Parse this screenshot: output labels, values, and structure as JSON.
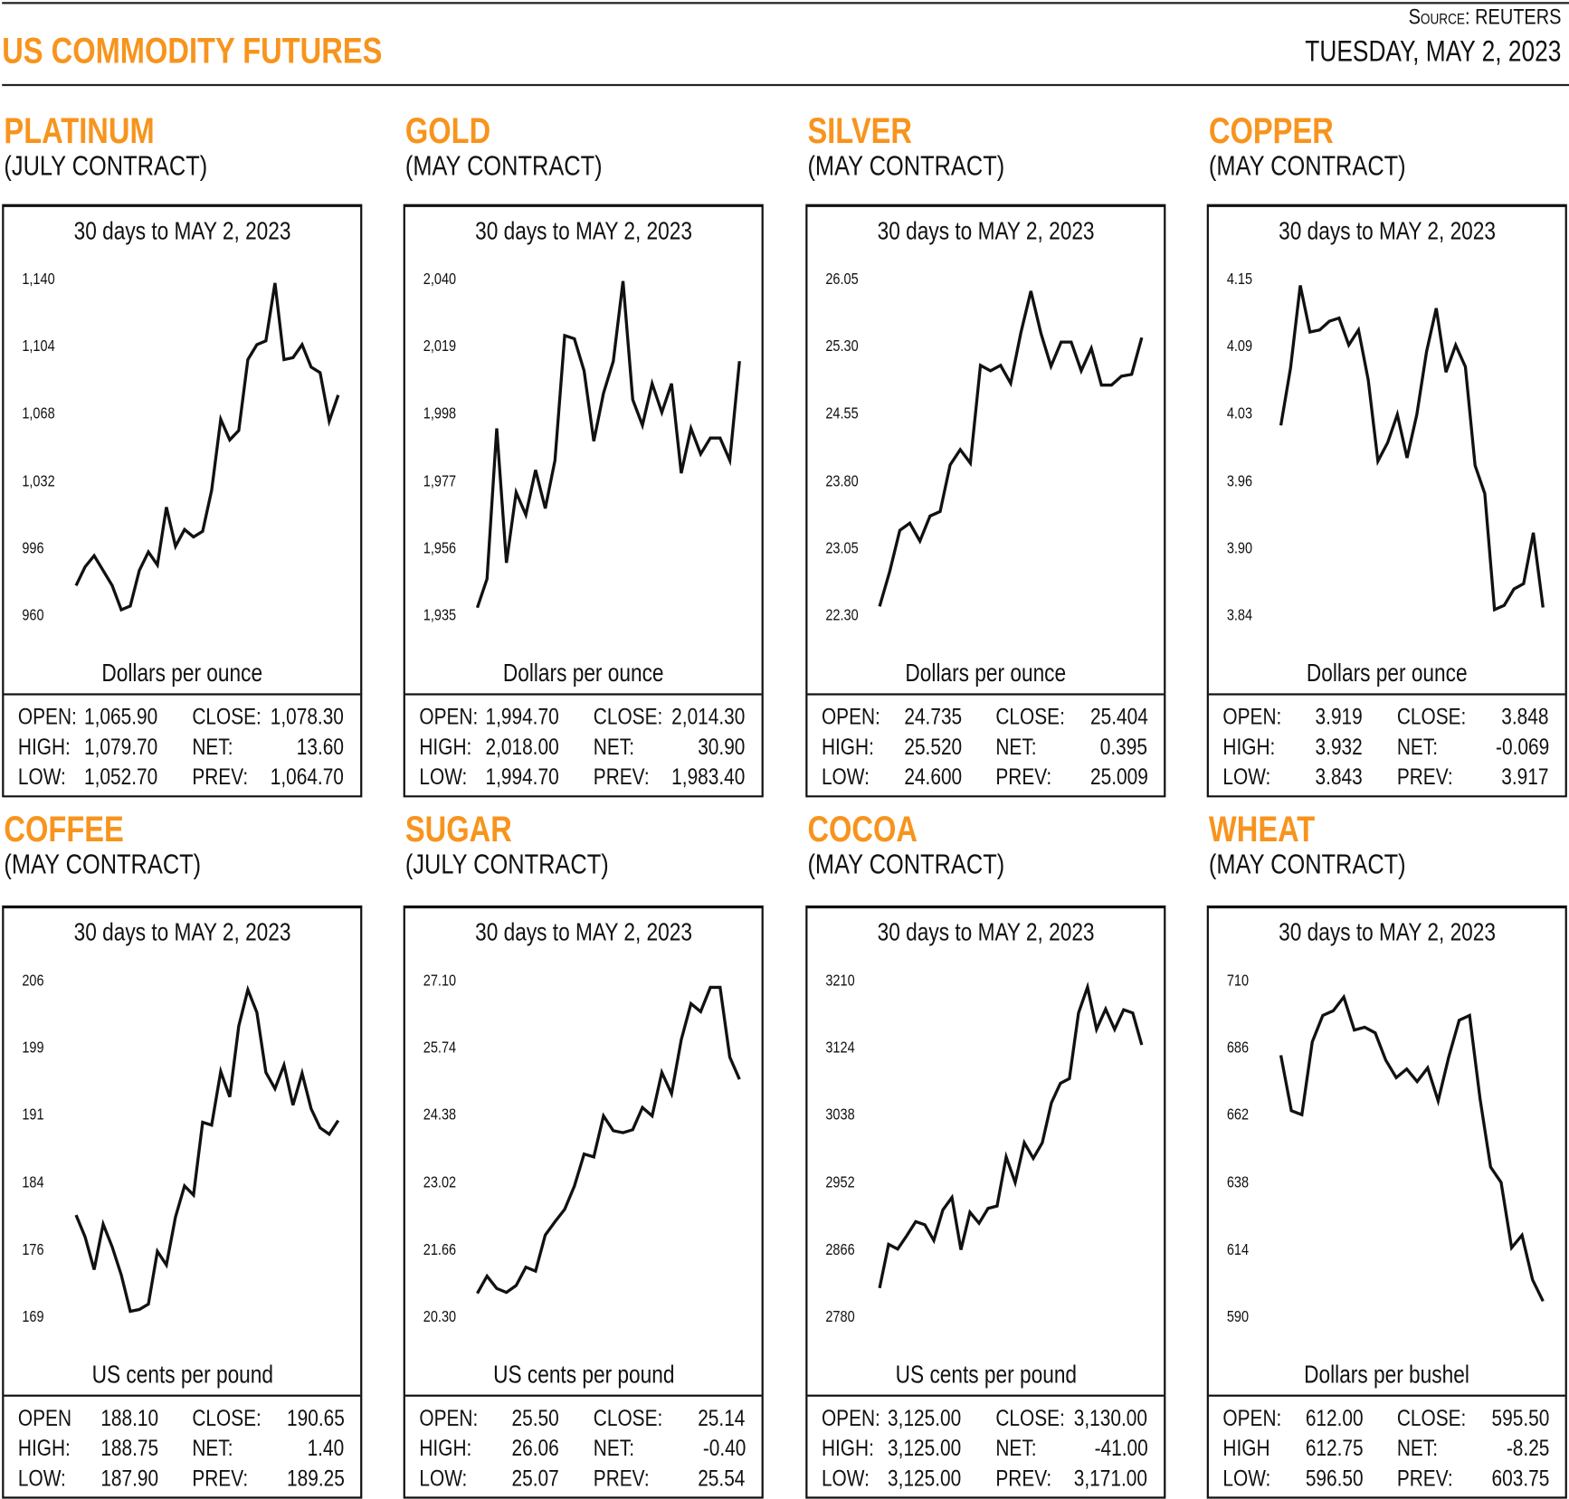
{
  "header": {
    "title": "US COMMODITY FUTURES",
    "source_label": "Source:",
    "source": "REUTERS",
    "date": "TUESDAY, MAY 2, 2023"
  },
  "colors": {
    "accent": "#F7941D",
    "line": "#111111"
  },
  "chart_data": [
    {
      "type": "line",
      "name": "PLATINUM",
      "contract": "(JULY CONTRACT)",
      "title": "30 days to MAY 2, 2023",
      "ylabel": "Dollars per ounce",
      "yticks": [
        "1,140",
        "1,104",
        "1,068",
        "1,032",
        "996",
        "960"
      ],
      "ylim": [
        960,
        1140
      ],
      "values": [
        977,
        987,
        993,
        985,
        977,
        964,
        966,
        985,
        995,
        988,
        1019,
        998,
        1007,
        1003,
        1006,
        1028,
        1066,
        1055,
        1060,
        1098,
        1106,
        1108,
        1139,
        1098,
        1099,
        1106,
        1094,
        1091,
        1065,
        1079
      ],
      "stats": [
        [
          "OPEN:",
          "1,065.90",
          "CLOSE:",
          "1,078.30"
        ],
        [
          "HIGH:",
          "1,079.70",
          "NET:",
          "13.60"
        ],
        [
          "LOW:",
          "1,052.70",
          "PREV:",
          "1,064.70"
        ]
      ]
    },
    {
      "type": "line",
      "name": "GOLD",
      "contract": "(MAY CONTRACT)",
      "title": "30 days to MAY 2, 2023",
      "ylabel": "Dollars per ounce",
      "yticks": [
        "2,040",
        "2,019",
        "1,998",
        "1,977",
        "1,956",
        "1,935"
      ],
      "ylim": [
        1935,
        2040
      ],
      "values": [
        1938,
        1947,
        1994,
        1952,
        1974,
        1967,
        1981,
        1969,
        1984,
        2023,
        2022,
        2012,
        1990,
        2005,
        2015,
        2040,
        2003,
        1995,
        2008,
        1999,
        2008,
        1980,
        1994,
        1986,
        1991,
        1991,
        1984,
        2015
      ],
      "stats": [
        [
          "OPEN:",
          "1,994.70",
          "CLOSE:",
          "2,014.30"
        ],
        [
          "HIGH:",
          "2,018.00",
          "NET:",
          "30.90"
        ],
        [
          "LOW:",
          "1,994.70",
          "PREV:",
          "1,983.40"
        ]
      ]
    },
    {
      "type": "line",
      "name": "SILVER",
      "contract": "(MAY CONTRACT)",
      "title": "30 days to MAY 2, 2023",
      "ylabel": "Dollars per ounce",
      "yticks": [
        "26.05",
        "25.30",
        "24.55",
        "23.80",
        "23.05",
        "22.30"
      ],
      "ylim": [
        22.3,
        26.05
      ],
      "values": [
        22.42,
        22.81,
        23.27,
        23.35,
        23.15,
        23.43,
        23.48,
        24.0,
        24.17,
        24.02,
        25.11,
        25.05,
        25.11,
        24.91,
        25.47,
        25.94,
        25.47,
        25.1,
        25.37,
        25.37,
        25.05,
        25.3,
        24.89,
        24.89,
        24.99,
        25.01,
        25.42
      ],
      "stats": [
        [
          "OPEN:",
          "24.735",
          "CLOSE:",
          "25.404"
        ],
        [
          "HIGH:",
          "25.520",
          "NET:",
          "0.395"
        ],
        [
          "LOW:",
          "24.600",
          "PREV:",
          "25.009"
        ]
      ]
    },
    {
      "type": "line",
      "name": "COPPER",
      "contract": "(MAY CONTRACT)",
      "title": "30 days to MAY 2, 2023",
      "ylabel": "Dollars per ounce",
      "yticks": [
        "4.15",
        "4.09",
        "4.03",
        "3.96",
        "3.90",
        "3.84"
      ],
      "ylim": [
        3.84,
        4.15
      ],
      "values": [
        4.017,
        4.07,
        4.146,
        4.103,
        4.105,
        4.113,
        4.116,
        4.091,
        4.105,
        4.059,
        3.984,
        4.001,
        4.027,
        3.987,
        4.027,
        4.085,
        4.125,
        4.066,
        4.091,
        4.071,
        3.98,
        3.954,
        3.847,
        3.851,
        3.866,
        3.871,
        3.918,
        3.849
      ],
      "stats": [
        [
          "OPEN:",
          "3.919",
          "CLOSE:",
          "3.848"
        ],
        [
          "HIGH:",
          "3.932",
          "NET:",
          "-0.069"
        ],
        [
          "LOW:",
          "3.843",
          "PREV:",
          "3.917"
        ]
      ]
    },
    {
      "type": "line",
      "name": "COFFEE",
      "contract": "(MAY CONTRACT)",
      "title": "30 days to MAY 2, 2023",
      "ylabel": "US cents per pound",
      "yticks": [
        "206",
        "199",
        "191",
        "184",
        "176",
        "169"
      ],
      "ylim": [
        169,
        206
      ],
      "values": [
        180.4,
        178.0,
        174.4,
        179.4,
        176.9,
        173.8,
        169.8,
        170.0,
        170.6,
        176.4,
        174.9,
        180.2,
        183.6,
        182.6,
        190.6,
        190.3,
        196.2,
        193.4,
        201.2,
        205.2,
        202.7,
        196.1,
        194.3,
        196.9,
        192.5,
        196.0,
        192.1,
        190.0,
        189.3,
        190.8
      ],
      "stats": [
        [
          "OPEN",
          "188.10",
          "CLOSE:",
          "190.65"
        ],
        [
          "HIGH:",
          "188.75",
          "NET:",
          "1.40"
        ],
        [
          "LOW:",
          "187.90",
          "PREV:",
          "189.25"
        ]
      ]
    },
    {
      "type": "line",
      "name": "SUGAR",
      "contract": "(JULY CONTRACT)",
      "title": "30 days to MAY 2, 2023",
      "ylabel": "US cents per pound",
      "yticks": [
        "27.10",
        "25.74",
        "24.38",
        "23.02",
        "21.66",
        "20.30"
      ],
      "ylim": [
        20.3,
        27.1
      ],
      "values": [
        20.81,
        21.16,
        20.91,
        20.83,
        20.97,
        21.34,
        21.26,
        21.99,
        22.26,
        22.51,
        22.98,
        23.63,
        23.57,
        24.4,
        24.1,
        24.06,
        24.12,
        24.57,
        24.4,
        25.28,
        24.85,
        25.94,
        26.67,
        26.51,
        27.0,
        27.0,
        25.59,
        25.14
      ],
      "stats": [
        [
          "OPEN:",
          "25.50",
          "CLOSE:",
          "25.14"
        ],
        [
          "HIGH:",
          "26.06",
          "NET:",
          "-0.40"
        ],
        [
          "LOW:",
          "25.07",
          "PREV:",
          "25.54"
        ]
      ]
    },
    {
      "type": "line",
      "name": "COCOA",
      "contract": "(MAY CONTRACT)",
      "title": "30 days to MAY 2, 2023",
      "ylabel": "US cents per pound",
      "yticks": [
        "3210",
        "3124",
        "3038",
        "2952",
        "2866",
        "2780"
      ],
      "ylim": [
        2780,
        3210
      ],
      "values": [
        2819,
        2875,
        2869,
        2886,
        2904,
        2900,
        2880,
        2919,
        2935,
        2868,
        2916,
        2902,
        2921,
        2924,
        2987,
        2954,
        3005,
        2985,
        3005,
        3056,
        3081,
        3087,
        3171,
        3204,
        3150,
        3176,
        3150,
        3175,
        3171,
        3130
      ],
      "stats": [
        [
          "OPEN:",
          "3,125.00",
          "CLOSE:",
          "3,130.00"
        ],
        [
          "HIGH:",
          "3,125.00",
          "NET:",
          "-41.00"
        ],
        [
          "LOW:",
          "3,125.00",
          "PREV:",
          "3,171.00"
        ]
      ]
    },
    {
      "type": "line",
      "name": "WHEAT",
      "contract": "(MAY CONTRACT)",
      "title": "30 days to MAY 2, 2023",
      "ylabel": "Dollars per bushel",
      "yticks": [
        "710",
        "686",
        "662",
        "638",
        "614",
        "590"
      ],
      "ylim": [
        590,
        710
      ],
      "values": [
        684.0,
        664.2,
        662.8,
        688.8,
        698.2,
        699.9,
        704.8,
        693.0,
        694.0,
        692.0,
        682.3,
        676.0,
        679.1,
        674.6,
        679.5,
        667.7,
        683.3,
        696.5,
        698.2,
        668.4,
        644.1,
        638.6,
        615.3,
        619.8,
        603.9,
        596.2
      ],
      "stats": [
        [
          "OPEN:",
          "612.00",
          "CLOSE:",
          "595.50"
        ],
        [
          "HIGH",
          "612.75",
          "NET:",
          "-8.25"
        ],
        [
          "LOW:",
          "596.50",
          "PREV:",
          "603.75"
        ]
      ]
    }
  ]
}
